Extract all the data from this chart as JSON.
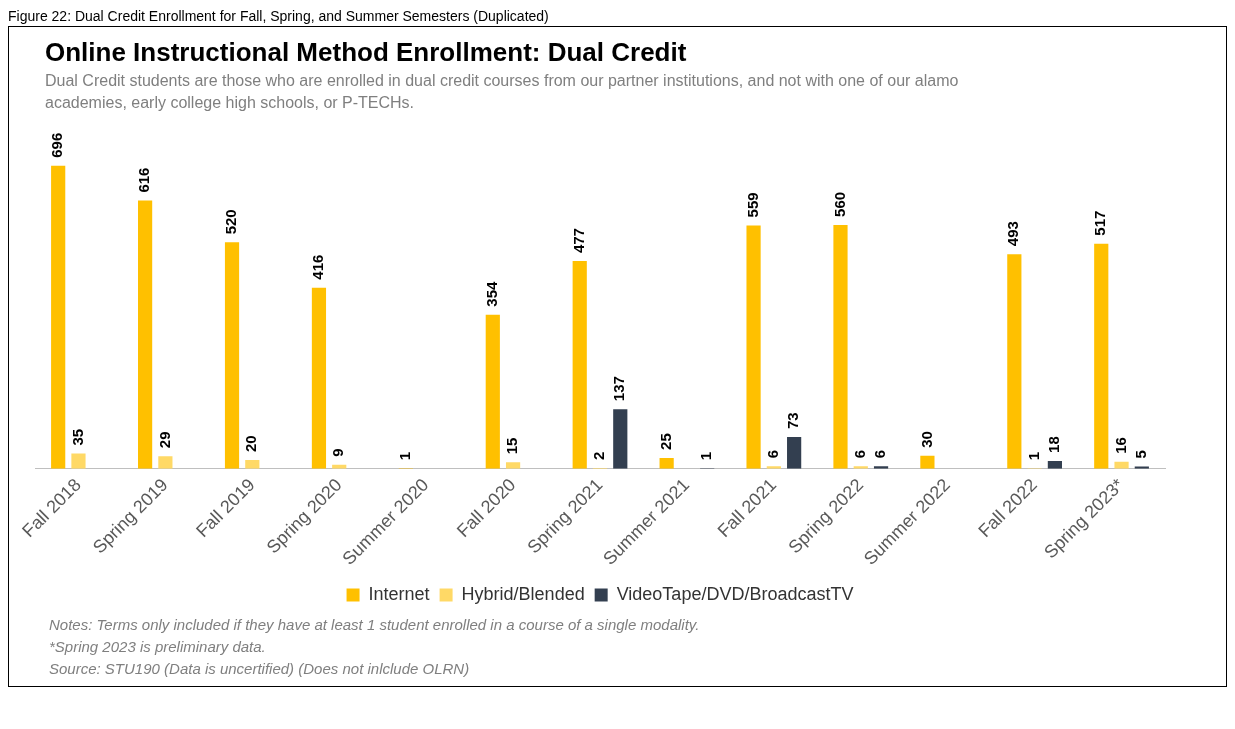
{
  "chart_data": {
    "type": "bar",
    "title": "Online Instructional Method Enrollment: Dual Credit",
    "subtitle": "Dual Credit students are those who are enrolled in dual credit courses from our partner institutions, and not with one of our alamo academies, early college high schools, or P-TECHs.",
    "categories": [
      "Fall 2018",
      "Spring 2019",
      "Fall 2019",
      "Spring 2020",
      "Summer 2020",
      "Fall 2020",
      "Spring 2021",
      "Summer 2021",
      "Fall 2021",
      "Spring 2022",
      "Summer 2022",
      "Fall 2022",
      "Spring 2023*"
    ],
    "series": [
      {
        "name": "Internet",
        "color": "#ffc000",
        "values": [
          696,
          616,
          520,
          416,
          1,
          354,
          477,
          25,
          559,
          560,
          30,
          493,
          517
        ]
      },
      {
        "name": "Hybrid/Blended",
        "color": "#ffd966",
        "values": [
          35,
          29,
          20,
          9,
          null,
          15,
          2,
          null,
          6,
          6,
          null,
          1,
          16
        ]
      },
      {
        "name": "VideoTape/DVD/BroadcastTV",
        "color": "#333f50",
        "values": [
          null,
          null,
          null,
          null,
          null,
          null,
          137,
          1,
          73,
          6,
          null,
          18,
          5
        ]
      }
    ],
    "data_labels": true,
    "grid": false,
    "legend": "bottom",
    "annotations": [
      "Figure 22: Dual Credit Enrollment for Fall, Spring, and Summer Semesters (Duplicated)",
      "Notes: Terms only included if they have at least 1 student enrolled in a course of a single modality.",
      "*Spring 2023 is preliminary data.",
      "Source: STU190 (Data is uncertified) (Does not inlclude OLRN)"
    ]
  }
}
